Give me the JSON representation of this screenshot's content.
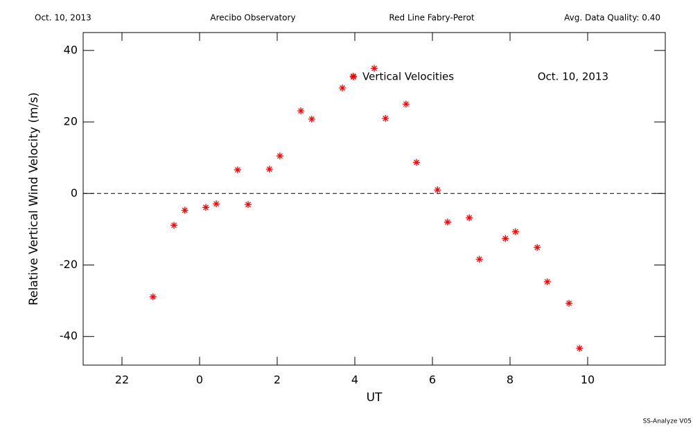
{
  "header": {
    "date": "Oct. 10, 2013",
    "site": "Arecibo Observatory",
    "instrument": "Red Line Fabry-Perot",
    "quality": "Avg. Data Quality: 0.40"
  },
  "chart_data": {
    "type": "scatter",
    "x_label": "UT",
    "y_label": "Relative Vertical Wind Velocity (m/s)",
    "annotation": "Oct. 10, 2013",
    "xlim": [
      -3,
      12
    ],
    "ylim": [
      -48,
      45
    ],
    "xticks": [
      {
        "value": -2,
        "label": "22"
      },
      0,
      2,
      4,
      6,
      8,
      10
    ],
    "yticks": [
      -40,
      -20,
      0,
      20,
      40
    ],
    "zero_line": true,
    "series": [
      {
        "name": "Vertical Velocities",
        "color": "#ff0000",
        "x": [
          -1.2,
          -0.66,
          -0.38,
          0.16,
          0.43,
          0.98,
          1.25,
          1.8,
          2.07,
          2.61,
          2.89,
          3.68,
          3.96,
          4.5,
          4.79,
          5.32,
          5.59,
          6.13,
          6.39,
          6.95,
          7.21,
          7.88,
          8.14,
          8.7,
          8.96,
          9.52,
          9.79
        ],
        "values": [
          -28.9,
          -8.9,
          -4.7,
          -3.9,
          -2.9,
          6.6,
          -3.1,
          6.8,
          10.5,
          23.1,
          20.8,
          29.5,
          32.8,
          35.0,
          21.0,
          25.0,
          8.7,
          1.0,
          -8.0,
          -6.8,
          -18.4,
          -12.6,
          -10.7,
          -15.1,
          -24.7,
          -30.7,
          -43.3
        ]
      }
    ]
  },
  "footer": "SS-Analyze V05"
}
